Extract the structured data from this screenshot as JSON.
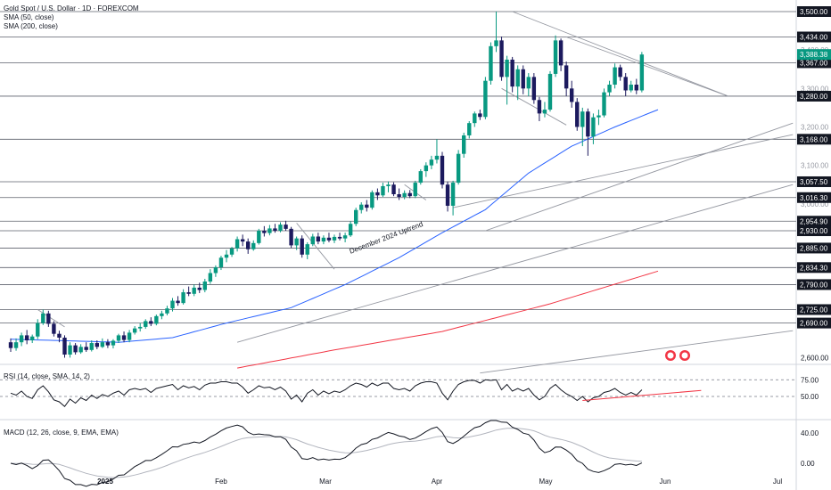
{
  "header": {
    "title": "Gold Spot / U.S. Dollar · 1D · FOREXCOM",
    "sma50_label": "SMA (50, close)",
    "sma200_label": "SMA (200, close)"
  },
  "colors": {
    "up": "#089981",
    "down": "#1c1a5e",
    "sma50": "#2962ff",
    "sma200": "#f23645",
    "rsi": "#131722",
    "macd": "#131722",
    "signal": "#b2b5be",
    "trendline": "#9598a1",
    "level": "#787b86",
    "label_bg": "#131722",
    "last_bg": "#089981"
  },
  "price_labels": [
    "3,500.00",
    "3,434.00",
    "3,367.00",
    "3,280.00",
    "3,168.00",
    "3,057.50",
    "3,016.30",
    "2,954.90",
    "2,930.00",
    "2,885.00",
    "2,834.30",
    "2,790.00",
    "2,725.00",
    "2,690.00"
  ],
  "last_price_label": "3,388.38",
  "faint_labels": [
    "3,400.00",
    "3,300.00",
    "3,200.00",
    "3,100.00",
    "3,000.00"
  ],
  "axis_labels": [
    "2,600.00"
  ],
  "annotations": {
    "uptrend": "December 2024 Uptrend"
  },
  "rsi_pane": {
    "label": "RSI (14, close, SMA, 14, 2)",
    "ticks": [
      "75.00",
      "50.00"
    ]
  },
  "macd_pane": {
    "label": "MACD (12, 26, close, 9, EMA, EMA)",
    "ticks": [
      "40.00",
      "0.00"
    ]
  },
  "time_axis": [
    "2025",
    "Feb",
    "Mar",
    "Apr",
    "May",
    "Jun",
    "Jul"
  ],
  "chart_data": {
    "type": "candlestick",
    "title": "Gold Spot / U.S. Dollar · 1D · FOREXCOM",
    "y_range": [
      2570,
      3515
    ],
    "horizontal_levels": [
      3500.0,
      3434.0,
      3367.0,
      3280.0,
      3168.0,
      3057.5,
      3016.3,
      2954.9,
      2930.0,
      2885.0,
      2834.3,
      2790.0,
      2725.0,
      2690.0
    ],
    "last_close": 3388.38,
    "candles": [
      {
        "o": 2640,
        "h": 2650,
        "l": 2615,
        "c": 2625
      },
      {
        "o": 2625,
        "h": 2650,
        "l": 2618,
        "c": 2640
      },
      {
        "o": 2640,
        "h": 2665,
        "l": 2630,
        "c": 2658
      },
      {
        "o": 2658,
        "h": 2672,
        "l": 2635,
        "c": 2645
      },
      {
        "o": 2645,
        "h": 2660,
        "l": 2638,
        "c": 2655
      },
      {
        "o": 2655,
        "h": 2700,
        "l": 2648,
        "c": 2690
      },
      {
        "o": 2690,
        "h": 2725,
        "l": 2685,
        "c": 2715
      },
      {
        "o": 2715,
        "h": 2722,
        "l": 2680,
        "c": 2688
      },
      {
        "o": 2688,
        "h": 2695,
        "l": 2655,
        "c": 2662
      },
      {
        "o": 2662,
        "h": 2670,
        "l": 2640,
        "c": 2652
      },
      {
        "o": 2652,
        "h": 2658,
        "l": 2600,
        "c": 2608
      },
      {
        "o": 2608,
        "h": 2640,
        "l": 2600,
        "c": 2632
      },
      {
        "o": 2632,
        "h": 2638,
        "l": 2608,
        "c": 2614
      },
      {
        "o": 2614,
        "h": 2635,
        "l": 2610,
        "c": 2628
      },
      {
        "o": 2628,
        "h": 2640,
        "l": 2615,
        "c": 2620
      },
      {
        "o": 2620,
        "h": 2645,
        "l": 2616,
        "c": 2638
      },
      {
        "o": 2638,
        "h": 2645,
        "l": 2622,
        "c": 2628
      },
      {
        "o": 2628,
        "h": 2650,
        "l": 2625,
        "c": 2640
      },
      {
        "o": 2640,
        "h": 2648,
        "l": 2625,
        "c": 2632
      },
      {
        "o": 2632,
        "h": 2648,
        "l": 2624,
        "c": 2644
      },
      {
        "o": 2644,
        "h": 2662,
        "l": 2638,
        "c": 2658
      },
      {
        "o": 2658,
        "h": 2668,
        "l": 2640,
        "c": 2646
      },
      {
        "o": 2646,
        "h": 2672,
        "l": 2640,
        "c": 2665
      },
      {
        "o": 2665,
        "h": 2682,
        "l": 2660,
        "c": 2676
      },
      {
        "o": 2676,
        "h": 2690,
        "l": 2668,
        "c": 2680
      },
      {
        "o": 2680,
        "h": 2700,
        "l": 2675,
        "c": 2695
      },
      {
        "o": 2695,
        "h": 2705,
        "l": 2682,
        "c": 2688
      },
      {
        "o": 2688,
        "h": 2712,
        "l": 2684,
        "c": 2708
      },
      {
        "o": 2708,
        "h": 2722,
        "l": 2700,
        "c": 2715
      },
      {
        "o": 2715,
        "h": 2735,
        "l": 2710,
        "c": 2728
      },
      {
        "o": 2728,
        "h": 2755,
        "l": 2720,
        "c": 2748
      },
      {
        "o": 2748,
        "h": 2760,
        "l": 2735,
        "c": 2742
      },
      {
        "o": 2742,
        "h": 2778,
        "l": 2738,
        "c": 2770
      },
      {
        "o": 2770,
        "h": 2785,
        "l": 2760,
        "c": 2766
      },
      {
        "o": 2766,
        "h": 2790,
        "l": 2760,
        "c": 2782
      },
      {
        "o": 2782,
        "h": 2795,
        "l": 2768,
        "c": 2776
      },
      {
        "o": 2776,
        "h": 2805,
        "l": 2770,
        "c": 2798
      },
      {
        "o": 2798,
        "h": 2830,
        "l": 2792,
        "c": 2820
      },
      {
        "o": 2820,
        "h": 2840,
        "l": 2810,
        "c": 2835
      },
      {
        "o": 2835,
        "h": 2865,
        "l": 2828,
        "c": 2860
      },
      {
        "o": 2860,
        "h": 2880,
        "l": 2848,
        "c": 2868
      },
      {
        "o": 2868,
        "h": 2888,
        "l": 2862,
        "c": 2884
      },
      {
        "o": 2884,
        "h": 2915,
        "l": 2876,
        "c": 2908
      },
      {
        "o": 2908,
        "h": 2920,
        "l": 2890,
        "c": 2902
      },
      {
        "o": 2902,
        "h": 2910,
        "l": 2870,
        "c": 2882
      },
      {
        "o": 2882,
        "h": 2905,
        "l": 2878,
        "c": 2898
      },
      {
        "o": 2898,
        "h": 2935,
        "l": 2894,
        "c": 2930
      },
      {
        "o": 2930,
        "h": 2942,
        "l": 2915,
        "c": 2924
      },
      {
        "o": 2924,
        "h": 2945,
        "l": 2918,
        "c": 2936
      },
      {
        "o": 2936,
        "h": 2948,
        "l": 2925,
        "c": 2930
      },
      {
        "o": 2930,
        "h": 2952,
        "l": 2926,
        "c": 2946
      },
      {
        "o": 2946,
        "h": 2956,
        "l": 2930,
        "c": 2935
      },
      {
        "o": 2935,
        "h": 2940,
        "l": 2885,
        "c": 2892
      },
      {
        "o": 2892,
        "h": 2915,
        "l": 2880,
        "c": 2910
      },
      {
        "o": 2910,
        "h": 2918,
        "l": 2860,
        "c": 2868
      },
      {
        "o": 2868,
        "h": 2900,
        "l": 2856,
        "c": 2895
      },
      {
        "o": 2895,
        "h": 2922,
        "l": 2890,
        "c": 2915
      },
      {
        "o": 2915,
        "h": 2925,
        "l": 2895,
        "c": 2902
      },
      {
        "o": 2902,
        "h": 2918,
        "l": 2895,
        "c": 2912
      },
      {
        "o": 2912,
        "h": 2925,
        "l": 2900,
        "c": 2905
      },
      {
        "o": 2905,
        "h": 2920,
        "l": 2898,
        "c": 2914
      },
      {
        "o": 2914,
        "h": 2925,
        "l": 2905,
        "c": 2910
      },
      {
        "o": 2910,
        "h": 2925,
        "l": 2900,
        "c": 2918
      },
      {
        "o": 2918,
        "h": 2955,
        "l": 2914,
        "c": 2948
      },
      {
        "o": 2948,
        "h": 2990,
        "l": 2942,
        "c": 2984
      },
      {
        "o": 2984,
        "h": 3004,
        "l": 2975,
        "c": 2998
      },
      {
        "o": 2998,
        "h": 3010,
        "l": 2980,
        "c": 2990
      },
      {
        "o": 2990,
        "h": 3035,
        "l": 2985,
        "c": 3030
      },
      {
        "o": 3030,
        "h": 3040,
        "l": 3010,
        "c": 3022
      },
      {
        "o": 3022,
        "h": 3055,
        "l": 3018,
        "c": 3046
      },
      {
        "o": 3046,
        "h": 3058,
        "l": 3030,
        "c": 3050
      },
      {
        "o": 3050,
        "h": 3056,
        "l": 3020,
        "c": 3025
      },
      {
        "o": 3025,
        "h": 3040,
        "l": 3010,
        "c": 3018
      },
      {
        "o": 3018,
        "h": 3035,
        "l": 3012,
        "c": 3028
      },
      {
        "o": 3028,
        "h": 3036,
        "l": 3015,
        "c": 3020
      },
      {
        "o": 3020,
        "h": 3060,
        "l": 3015,
        "c": 3055
      },
      {
        "o": 3055,
        "h": 3090,
        "l": 3050,
        "c": 3085
      },
      {
        "o": 3085,
        "h": 3108,
        "l": 3070,
        "c": 3100
      },
      {
        "o": 3100,
        "h": 3125,
        "l": 3090,
        "c": 3115
      },
      {
        "o": 3115,
        "h": 3168,
        "l": 3105,
        "c": 3125
      },
      {
        "o": 3125,
        "h": 3135,
        "l": 3040,
        "c": 3050
      },
      {
        "o": 3050,
        "h": 3058,
        "l": 2980,
        "c": 2995
      },
      {
        "o": 2995,
        "h": 3060,
        "l": 2970,
        "c": 3055
      },
      {
        "o": 3055,
        "h": 3140,
        "l": 3050,
        "c": 3130
      },
      {
        "o": 3130,
        "h": 3185,
        "l": 3120,
        "c": 3178
      },
      {
        "o": 3178,
        "h": 3215,
        "l": 3170,
        "c": 3210
      },
      {
        "o": 3210,
        "h": 3240,
        "l": 3200,
        "c": 3235
      },
      {
        "o": 3235,
        "h": 3245,
        "l": 3218,
        "c": 3226
      },
      {
        "o": 3226,
        "h": 3330,
        "l": 3220,
        "c": 3320
      },
      {
        "o": 3320,
        "h": 3420,
        "l": 3310,
        "c": 3410
      },
      {
        "o": 3410,
        "h": 3500,
        "l": 3395,
        "c": 3425
      },
      {
        "o": 3425,
        "h": 3435,
        "l": 3320,
        "c": 3330
      },
      {
        "o": 3330,
        "h": 3385,
        "l": 3258,
        "c": 3375
      },
      {
        "o": 3375,
        "h": 3382,
        "l": 3290,
        "c": 3305
      },
      {
        "o": 3305,
        "h": 3360,
        "l": 3270,
        "c": 3350
      },
      {
        "o": 3350,
        "h": 3360,
        "l": 3285,
        "c": 3300
      },
      {
        "o": 3300,
        "h": 3340,
        "l": 3280,
        "c": 3330
      },
      {
        "o": 3330,
        "h": 3340,
        "l": 3260,
        "c": 3270
      },
      {
        "o": 3270,
        "h": 3278,
        "l": 3215,
        "c": 3235
      },
      {
        "o": 3235,
        "h": 3265,
        "l": 3225,
        "c": 3245
      },
      {
        "o": 3245,
        "h": 3345,
        "l": 3240,
        "c": 3338
      },
      {
        "o": 3338,
        "h": 3438,
        "l": 3330,
        "c": 3425
      },
      {
        "o": 3425,
        "h": 3430,
        "l": 3345,
        "c": 3360
      },
      {
        "o": 3360,
        "h": 3370,
        "l": 3280,
        "c": 3300
      },
      {
        "o": 3300,
        "h": 3320,
        "l": 3250,
        "c": 3265
      },
      {
        "o": 3265,
        "h": 3275,
        "l": 3190,
        "c": 3200
      },
      {
        "o": 3200,
        "h": 3250,
        "l": 3150,
        "c": 3240
      },
      {
        "o": 3240,
        "h": 3248,
        "l": 3125,
        "c": 3175
      },
      {
        "o": 3175,
        "h": 3235,
        "l": 3155,
        "c": 3225
      },
      {
        "o": 3225,
        "h": 3245,
        "l": 3205,
        "c": 3230
      },
      {
        "o": 3230,
        "h": 3300,
        "l": 3225,
        "c": 3290
      },
      {
        "o": 3290,
        "h": 3320,
        "l": 3280,
        "c": 3310
      },
      {
        "o": 3310,
        "h": 3365,
        "l": 3300,
        "c": 3355
      },
      {
        "o": 3355,
        "h": 3362,
        "l": 3320,
        "c": 3330
      },
      {
        "o": 3330,
        "h": 3340,
        "l": 3280,
        "c": 3295
      },
      {
        "o": 3295,
        "h": 3320,
        "l": 3290,
        "c": 3310
      },
      {
        "o": 3310,
        "h": 3325,
        "l": 3285,
        "c": 3295
      },
      {
        "o": 3295,
        "h": 3395,
        "l": 3290,
        "c": 3388.38
      }
    ],
    "sma50_anchor": [
      [
        0,
        2648
      ],
      [
        20,
        2640
      ],
      [
        30,
        2652
      ],
      [
        40,
        2690
      ],
      [
        52,
        2730
      ],
      [
        62,
        2790
      ],
      [
        72,
        2860
      ],
      [
        80,
        2925
      ],
      [
        88,
        2985
      ],
      [
        96,
        3080
      ],
      [
        104,
        3150
      ],
      [
        112,
        3200
      ],
      [
        120,
        3245
      ]
    ],
    "sma200_anchor": [
      [
        42,
        2573
      ],
      [
        60,
        2620
      ],
      [
        80,
        2668
      ],
      [
        100,
        2740
      ],
      [
        120,
        2825
      ]
    ],
    "rsi": [
      55,
      52,
      58,
      50,
      47,
      60,
      66,
      57,
      45,
      42,
      35,
      46,
      40,
      48,
      44,
      52,
      47,
      53,
      50,
      55,
      58,
      52,
      60,
      62,
      60,
      62,
      56,
      62,
      64,
      66,
      68,
      60,
      66,
      63,
      65,
      60,
      67,
      70,
      70,
      72,
      72,
      70,
      70,
      64,
      55,
      60,
      66,
      63,
      64,
      60,
      64,
      58,
      46,
      52,
      42,
      55,
      60,
      52,
      58,
      54,
      58,
      56,
      60,
      66,
      70,
      68,
      64,
      70,
      66,
      70,
      70,
      62,
      60,
      62,
      58,
      66,
      70,
      72,
      72,
      70,
      55,
      45,
      58,
      68,
      72,
      74,
      74,
      70,
      75,
      74,
      75,
      60,
      68,
      58,
      62,
      58,
      62,
      52,
      45,
      50,
      62,
      68,
      60,
      54,
      50,
      44,
      50,
      42,
      48,
      50,
      56,
      58,
      62,
      56,
      52,
      56,
      52,
      60
    ],
    "macd_ticks": [
      40,
      0
    ]
  }
}
